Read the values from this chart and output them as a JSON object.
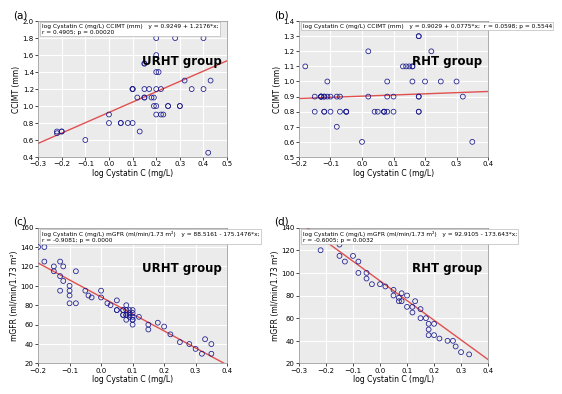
{
  "panel_a": {
    "title_line1": "log Cystatin C (mg/L) CCIMT (mm)   y = 0.9249 + 1.2176*x;",
    "title_line2": "r = 0.4905; p = 0.00020",
    "xlabel": "log Cystatin C (mg/L)",
    "ylabel": "CCIMT (mm)",
    "group_label": "URHT group",
    "xlim": [
      -0.3,
      0.5
    ],
    "ylim": [
      0.4,
      2.0
    ],
    "xticks": [
      -0.3,
      -0.2,
      -0.1,
      0.0,
      0.1,
      0.2,
      0.3,
      0.4,
      0.5
    ],
    "yticks": [
      0.4,
      0.6,
      0.8,
      1.0,
      1.2,
      1.4,
      1.6,
      1.8,
      2.0
    ],
    "reg_a": 0.9249,
    "reg_b": 1.2176,
    "x_data": [
      -0.22,
      -0.22,
      -0.2,
      -0.2,
      -0.1,
      0.0,
      0.0,
      0.05,
      0.05,
      0.08,
      0.1,
      0.1,
      0.1,
      0.1,
      0.12,
      0.13,
      0.15,
      0.15,
      0.15,
      0.15,
      0.15,
      0.17,
      0.18,
      0.19,
      0.19,
      0.2,
      0.2,
      0.2,
      0.2,
      0.2,
      0.2,
      0.21,
      0.22,
      0.22,
      0.23,
      0.25,
      0.25,
      0.28,
      0.3,
      0.3,
      0.32,
      0.35,
      0.4,
      0.4,
      0.42,
      0.43
    ],
    "y_data": [
      0.7,
      0.68,
      0.7,
      0.7,
      0.6,
      0.9,
      0.8,
      0.8,
      0.8,
      0.8,
      1.2,
      1.2,
      1.2,
      0.8,
      1.1,
      0.7,
      1.2,
      1.5,
      1.5,
      1.1,
      1.1,
      1.2,
      1.1,
      1.1,
      1.0,
      1.8,
      1.6,
      1.4,
      1.2,
      1.0,
      0.9,
      1.4,
      1.2,
      0.9,
      0.9,
      1.0,
      1.0,
      1.8,
      1.0,
      1.0,
      1.3,
      1.2,
      1.2,
      1.8,
      0.45,
      1.3
    ]
  },
  "panel_b": {
    "title_line1": "log Cystatin C (mg/L) CCIMT (mm)   y = 0.9029 + 0.0775*x;  r = 0.0598; p = 0.5544",
    "title_line2": null,
    "xlabel": "log Cystatin C (mg/L)",
    "ylabel": "CCIMT (mm)",
    "group_label": "RHT group",
    "xlim": [
      -0.2,
      0.4
    ],
    "ylim": [
      0.5,
      1.4
    ],
    "xticks": [
      -0.2,
      -0.1,
      0.0,
      0.1,
      0.2,
      0.3,
      0.4
    ],
    "yticks": [
      0.5,
      0.6,
      0.7,
      0.8,
      0.9,
      1.0,
      1.1,
      1.2,
      1.3,
      1.4
    ],
    "reg_a": 0.9029,
    "reg_b": 0.0775,
    "x_data": [
      -0.18,
      -0.15,
      -0.15,
      -0.13,
      -0.13,
      -0.13,
      -0.13,
      -0.12,
      -0.12,
      -0.12,
      -0.12,
      -0.11,
      -0.11,
      -0.1,
      -0.1,
      -0.08,
      -0.08,
      -0.07,
      -0.07,
      -0.05,
      -0.05,
      -0.05,
      0.0,
      0.02,
      0.02,
      0.04,
      0.05,
      0.07,
      0.07,
      0.07,
      0.08,
      0.08,
      0.08,
      0.1,
      0.1,
      0.13,
      0.14,
      0.15,
      0.16,
      0.16,
      0.16,
      0.18,
      0.18,
      0.18,
      0.18,
      0.18,
      0.18,
      0.2,
      0.22,
      0.25,
      0.3,
      0.32,
      0.35
    ],
    "y_data": [
      1.1,
      0.9,
      0.8,
      0.9,
      0.9,
      0.9,
      0.9,
      0.9,
      0.9,
      0.8,
      0.8,
      1.0,
      0.9,
      0.9,
      0.8,
      0.9,
      0.7,
      0.9,
      0.8,
      0.8,
      0.8,
      0.8,
      0.6,
      1.2,
      0.9,
      0.8,
      0.8,
      0.8,
      0.8,
      0.8,
      0.8,
      0.9,
      1.0,
      0.8,
      0.9,
      1.1,
      1.1,
      1.1,
      1.1,
      1.1,
      1.0,
      0.9,
      0.9,
      0.8,
      0.8,
      1.3,
      1.3,
      1.0,
      1.2,
      1.0,
      1.0,
      0.9,
      0.6
    ]
  },
  "panel_c": {
    "title_line1": "log Cystatin C (mg/L) mGFR (ml/min/1.73 m²)   y = 88.5161 - 175.1476*x;",
    "title_line2": "r = -0.9081; p = 0.0000",
    "xlabel": "log Cystatin C (mg/L)",
    "ylabel": "mGFR (ml/min/1.73 m²)",
    "group_label": "URHT group",
    "xlim": [
      -0.2,
      0.4
    ],
    "ylim": [
      20,
      160
    ],
    "xticks": [
      -0.2,
      -0.1,
      0.0,
      0.1,
      0.2,
      0.3,
      0.4
    ],
    "yticks": [
      20,
      40,
      60,
      80,
      100,
      120,
      140,
      160
    ],
    "reg_a": 88.5161,
    "reg_b": -175.1476,
    "x_data": [
      -0.2,
      -0.18,
      -0.18,
      -0.15,
      -0.15,
      -0.13,
      -0.13,
      -0.13,
      -0.12,
      -0.12,
      -0.1,
      -0.1,
      -0.1,
      -0.1,
      -0.08,
      -0.08,
      -0.05,
      -0.04,
      -0.03,
      0.0,
      0.0,
      0.02,
      0.03,
      0.05,
      0.05,
      0.05,
      0.07,
      0.07,
      0.07,
      0.07,
      0.08,
      0.08,
      0.08,
      0.08,
      0.08,
      0.09,
      0.09,
      0.09,
      0.09,
      0.1,
      0.1,
      0.1,
      0.1,
      0.1,
      0.1,
      0.12,
      0.15,
      0.15,
      0.18,
      0.2,
      0.22,
      0.25,
      0.28,
      0.3,
      0.32,
      0.33,
      0.35,
      0.35
    ],
    "y_data": [
      140,
      140,
      125,
      120,
      115,
      125,
      110,
      95,
      120,
      105,
      100,
      95,
      90,
      82,
      115,
      82,
      95,
      90,
      88,
      95,
      88,
      82,
      80,
      85,
      75,
      75,
      75,
      75,
      70,
      70,
      80,
      75,
      70,
      70,
      65,
      75,
      72,
      70,
      68,
      75,
      72,
      68,
      65,
      65,
      60,
      68,
      60,
      55,
      62,
      58,
      50,
      42,
      40,
      35,
      30,
      45,
      40,
      30
    ]
  },
  "panel_d": {
    "title_line1": "log Cystatin C (mg/L) mGFR (ml/min/1.73 m²)   y = 92.9105 - 173.643*x;",
    "title_line2": "r = -0.6005; p = 0.0032",
    "xlabel": "log Cystatin C (mg/L)",
    "ylabel": "mGFR (ml/min/1.73 m²)",
    "group_label": "RHT group",
    "xlim": [
      -0.3,
      0.4
    ],
    "ylim": [
      20,
      140
    ],
    "xticks": [
      -0.3,
      -0.2,
      -0.1,
      0.0,
      0.1,
      0.2,
      0.3,
      0.4
    ],
    "yticks": [
      20,
      40,
      60,
      80,
      100,
      120,
      140
    ],
    "reg_a": 92.9105,
    "reg_b": -173.643,
    "x_data": [
      -0.22,
      -0.18,
      -0.15,
      -0.15,
      -0.13,
      -0.1,
      -0.08,
      -0.08,
      -0.05,
      -0.05,
      -0.03,
      0.0,
      0.02,
      0.05,
      0.05,
      0.07,
      0.07,
      0.08,
      0.08,
      0.1,
      0.1,
      0.12,
      0.12,
      0.13,
      0.15,
      0.15,
      0.17,
      0.18,
      0.18,
      0.18,
      0.2,
      0.2,
      0.22,
      0.25,
      0.27,
      0.28,
      0.3,
      0.33
    ],
    "y_data": [
      120,
      130,
      115,
      125,
      110,
      115,
      110,
      100,
      100,
      95,
      90,
      90,
      88,
      85,
      80,
      78,
      75,
      82,
      75,
      80,
      70,
      70,
      65,
      75,
      68,
      60,
      60,
      55,
      50,
      45,
      55,
      45,
      42,
      40,
      40,
      35,
      30,
      28
    ]
  },
  "marker_color": "#1a1a8c",
  "marker_facecolor": "none",
  "marker_size": 3.5,
  "line_color": "#e05050",
  "bg_color": "#ebebeb",
  "grid_color": "white",
  "label_fontsize": 5.5,
  "tick_fontsize": 5.0,
  "title_fontsize": 4.2,
  "group_fontsize": 8.5,
  "panel_label_fontsize": 7.5
}
